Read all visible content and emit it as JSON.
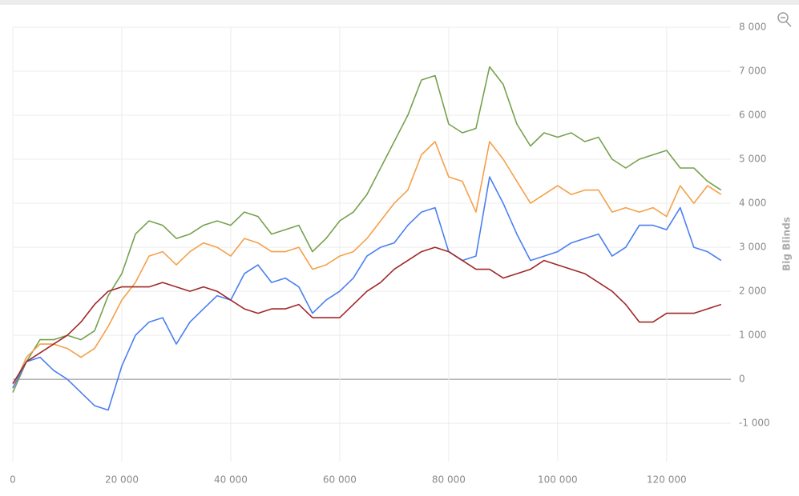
{
  "chart_data": {
    "type": "line",
    "y_label": "Big Blinds",
    "x": [
      0,
      2500,
      5000,
      7500,
      10000,
      12500,
      15000,
      17500,
      20000,
      22500,
      25000,
      27500,
      30000,
      32500,
      35000,
      37500,
      40000,
      42500,
      45000,
      47500,
      50000,
      52500,
      55000,
      57500,
      60000,
      62500,
      65000,
      67500,
      70000,
      72500,
      75000,
      77500,
      80000,
      82500,
      85000,
      87500,
      90000,
      92500,
      95000,
      97500,
      100000,
      102500,
      105000,
      107500,
      110000,
      112500,
      115000,
      117500,
      120000,
      122500,
      125000,
      127500,
      130000
    ],
    "series": [
      {
        "color": "#76a14e",
        "values": [
          -300,
          400,
          900,
          900,
          1000,
          900,
          1100,
          1900,
          2400,
          3300,
          3600,
          3500,
          3200,
          3300,
          3500,
          3600,
          3500,
          3800,
          3700,
          3300,
          3400,
          3500,
          2900,
          3200,
          3600,
          3800,
          4200,
          4800,
          5400,
          6000,
          6800,
          6900,
          5800,
          5600,
          5700,
          7100,
          6700,
          5800,
          5300,
          5600,
          5500,
          5600,
          5400,
          5500,
          5000,
          4800,
          5000,
          5100,
          5200,
          4800,
          4800,
          4500,
          4300
        ]
      },
      {
        "color": "#f5a04a",
        "values": [
          -200,
          500,
          800,
          800,
          700,
          500,
          700,
          1200,
          1800,
          2200,
          2800,
          2900,
          2600,
          2900,
          3100,
          3000,
          2800,
          3200,
          3100,
          2900,
          2900,
          3000,
          2500,
          2600,
          2800,
          2900,
          3200,
          3600,
          4000,
          4300,
          5100,
          5400,
          4600,
          4500,
          3800,
          5400,
          5000,
          4500,
          4000,
          4200,
          4400,
          4200,
          4300,
          4300,
          3800,
          3900,
          3800,
          3900,
          3700,
          4400,
          4000,
          4400,
          4200
        ]
      },
      {
        "color": "#4a7ff0",
        "values": [
          -200,
          400,
          500,
          200,
          0,
          -300,
          -600,
          -700,
          300,
          1000,
          1300,
          1400,
          800,
          1300,
          1600,
          1900,
          1800,
          2400,
          2600,
          2200,
          2300,
          2100,
          1500,
          1800,
          2000,
          2300,
          2800,
          3000,
          3100,
          3500,
          3800,
          3900,
          2900,
          2700,
          2800,
          4600,
          4000,
          3300,
          2700,
          2800,
          2900,
          3100,
          3200,
          3300,
          2800,
          3000,
          3500,
          3500,
          3400,
          3900,
          3000,
          2900,
          2700
        ]
      },
      {
        "color": "#a02828",
        "values": [
          -100,
          400,
          600,
          800,
          1000,
          1300,
          1700,
          2000,
          2100,
          2100,
          2100,
          2200,
          2100,
          2000,
          2100,
          2000,
          1800,
          1600,
          1500,
          1600,
          1600,
          1700,
          1400,
          1400,
          1400,
          1700,
          2000,
          2200,
          2500,
          2700,
          2900,
          3000,
          2900,
          2700,
          2500,
          2500,
          2300,
          2400,
          2500,
          2700,
          2600,
          2500,
          2400,
          2200,
          2000,
          1700,
          1300,
          1300,
          1500,
          1500,
          1500,
          1600,
          1700
        ]
      }
    ],
    "xlim": [
      0,
      131500
    ],
    "ylim": [
      -1870,
      8000
    ],
    "xticks": [
      0,
      {
        "value": 20000,
        "label": "20 000"
      },
      {
        "value": 40000,
        "label": "40 000"
      },
      {
        "value": 60000,
        "label": "60 000"
      },
      {
        "value": 80000,
        "label": "80 000"
      },
      {
        "value": 100000,
        "label": "100 000"
      },
      {
        "value": 120000,
        "label": "120 000"
      }
    ],
    "yticks": [
      {
        "value": -1000,
        "label": "-1 000"
      },
      0,
      {
        "value": 1000,
        "label": "1 000"
      },
      {
        "value": 2000,
        "label": "2 000"
      },
      {
        "value": 3000,
        "label": "3 000"
      },
      {
        "value": 4000,
        "label": "4 000"
      },
      {
        "value": 5000,
        "label": "5 000"
      },
      {
        "value": 6000,
        "label": "6 000"
      },
      {
        "value": 7000,
        "label": "7 000"
      },
      {
        "value": 8000,
        "label": "8 000"
      }
    ],
    "grid": true
  }
}
